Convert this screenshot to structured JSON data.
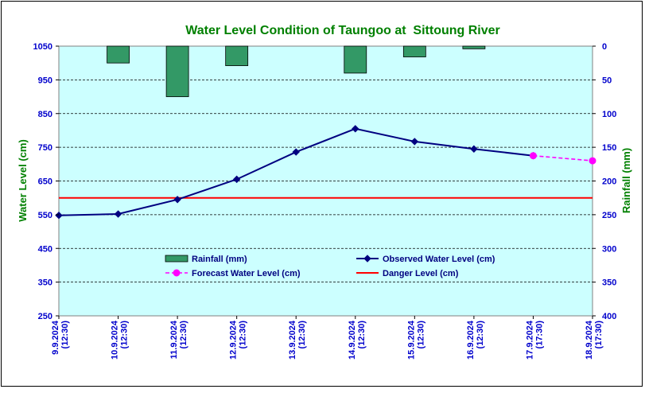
{
  "chart_data": {
    "type": "line",
    "title": "Water Level Condition of Taungoo at  Sittoung River",
    "ylabel_left": "Water Level (cm)",
    "ylabel_right": "Rainfall (mm)",
    "categories": [
      [
        "9.9.2024",
        "(12:30)"
      ],
      [
        "10.9.2024",
        "(12:30)"
      ],
      [
        "11.9.2024",
        "(12:30)"
      ],
      [
        "12.9.2024",
        "(12:30)"
      ],
      [
        "13.9.2024",
        "(12:30)"
      ],
      [
        "14.9.2024",
        "(12:30)"
      ],
      [
        "15.9.2024",
        "(12:30)"
      ],
      [
        "16.9.2024",
        "(12:30)"
      ],
      [
        "17.9.2024",
        "(17:30)"
      ],
      [
        "18.9.2024",
        "(17:30)"
      ]
    ],
    "ylim_left": [
      250,
      1050
    ],
    "yticks_left": [
      250,
      350,
      450,
      550,
      650,
      750,
      850,
      950,
      1050
    ],
    "ylim_right": [
      0,
      400
    ],
    "yticks_right": [
      0,
      50,
      100,
      150,
      200,
      250,
      300,
      350,
      400
    ],
    "right_axis_inverted": true,
    "grid": true,
    "series": [
      {
        "name": "Rainfall (mm)",
        "kind": "bar",
        "axis": "right",
        "color": "#339966",
        "values": [
          null,
          25,
          75,
          29,
          null,
          40,
          16,
          4,
          null,
          null
        ]
      },
      {
        "name": "Observed Water Level (cm)",
        "kind": "line",
        "axis": "left",
        "color": "#000080",
        "marker": "diamond",
        "values": [
          548,
          552,
          595,
          655,
          736,
          805,
          767,
          745,
          725,
          null
        ]
      },
      {
        "name": "Forecast Water Level (cm)",
        "kind": "line",
        "axis": "left",
        "color": "#ff00ff",
        "marker": "circle",
        "dashed": true,
        "values": [
          null,
          null,
          null,
          null,
          null,
          null,
          null,
          null,
          725,
          710
        ]
      },
      {
        "name": "Danger Level (cm)",
        "kind": "hline",
        "axis": "left",
        "color": "#ff0000",
        "value": 600
      }
    ],
    "legend_position": "bottom-center"
  }
}
